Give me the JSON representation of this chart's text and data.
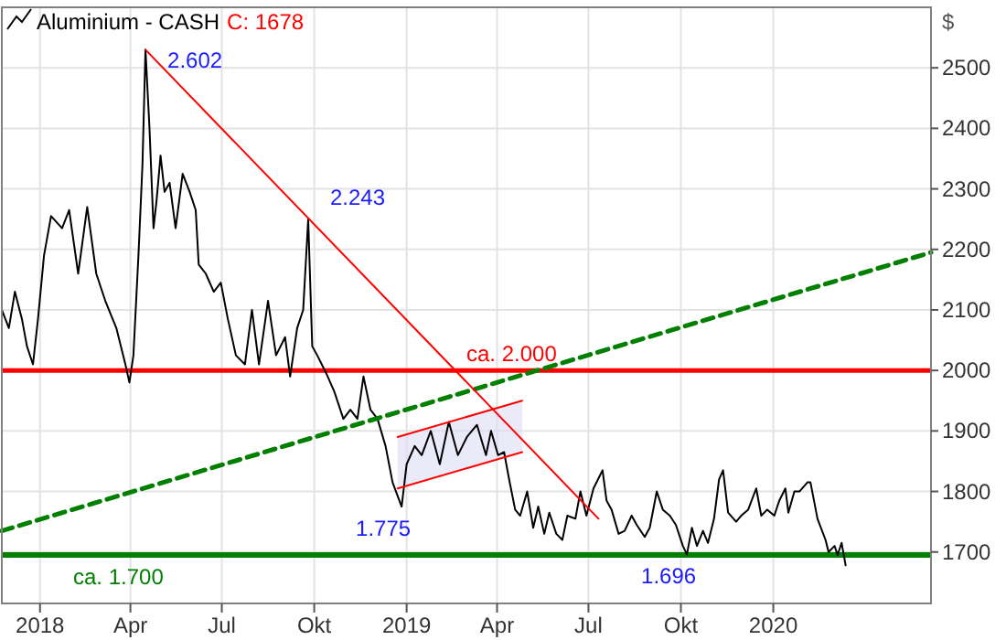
{
  "chart_data": {
    "type": "line",
    "title": "Aluminium - CASH",
    "subtitle": "C: 1678",
    "ylabel": "$",
    "xlim": [
      "2017-11-24",
      "2020-06-06"
    ],
    "ylim": [
      1615,
      2600
    ],
    "xticks": [
      {
        "value": "2018-01-01",
        "label": "2018"
      },
      {
        "value": "2018-04-01",
        "label": "Apr"
      },
      {
        "value": "2018-07-01",
        "label": "Jul"
      },
      {
        "value": "2018-10-01",
        "label": "Okt"
      },
      {
        "value": "2019-01-01",
        "label": "2019"
      },
      {
        "value": "2019-04-01",
        "label": "Apr"
      },
      {
        "value": "2019-07-01",
        "label": "Jul"
      },
      {
        "value": "2019-10-01",
        "label": "Okt"
      },
      {
        "value": "2020-01-01",
        "label": "2020"
      }
    ],
    "yticks": [
      1700,
      1800,
      1900,
      2000,
      2100,
      2200,
      2300,
      2400,
      2500
    ],
    "grid": true,
    "marker": "none",
    "series": [
      {
        "color": "#000000",
        "x": [
          "2017-11-24",
          "2017-12-01",
          "2017-12-07",
          "2017-12-14",
          "2017-12-19",
          "2017-12-25",
          "2017-12-30",
          "2018-01-05",
          "2018-01-12",
          "2018-01-23",
          "2018-01-30",
          "2018-02-08",
          "2018-02-17",
          "2018-02-26",
          "2018-03-07",
          "2018-03-18",
          "2018-03-27",
          "2018-03-31",
          "2018-04-04",
          "2018-04-09",
          "2018-04-13",
          "2018-04-16",
          "2018-04-20",
          "2018-04-24",
          "2018-04-27",
          "2018-05-01",
          "2018-05-05",
          "2018-05-10",
          "2018-05-16",
          "2018-05-23",
          "2018-05-30",
          "2018-06-05",
          "2018-06-08",
          "2018-06-15",
          "2018-06-23",
          "2018-06-30",
          "2018-07-07",
          "2018-07-15",
          "2018-07-24",
          "2018-07-31",
          "2018-08-07",
          "2018-08-16",
          "2018-08-24",
          "2018-09-02",
          "2018-09-07",
          "2018-09-14",
          "2018-09-20",
          "2018-09-25",
          "2018-09-29",
          "2018-10-04",
          "2018-10-13",
          "2018-10-21",
          "2018-10-30",
          "2018-11-06",
          "2018-11-13",
          "2018-11-19",
          "2018-11-26",
          "2018-12-03",
          "2018-12-11",
          "2018-12-18",
          "2018-12-27",
          "2019-01-01",
          "2019-01-09",
          "2019-01-16",
          "2019-01-25",
          "2019-02-03",
          "2019-02-12",
          "2019-02-21",
          "2019-03-02",
          "2019-03-12",
          "2019-03-21",
          "2019-03-26",
          "2019-04-02",
          "2019-04-08",
          "2019-04-13",
          "2019-04-19",
          "2019-04-24",
          "2019-05-01",
          "2019-05-07",
          "2019-05-12",
          "2019-05-18",
          "2019-05-23",
          "2019-05-30",
          "2019-06-05",
          "2019-06-10",
          "2019-06-18",
          "2019-06-23",
          "2019-06-29",
          "2019-07-06",
          "2019-07-15",
          "2019-07-19",
          "2019-07-24",
          "2019-07-31",
          "2019-08-06",
          "2019-08-13",
          "2019-08-18",
          "2019-08-26",
          "2019-08-31",
          "2019-09-07",
          "2019-09-13",
          "2019-09-20",
          "2019-09-26",
          "2019-10-03",
          "2019-10-07",
          "2019-10-12",
          "2019-10-17",
          "2019-10-23",
          "2019-10-28",
          "2019-11-03",
          "2019-11-08",
          "2019-11-12",
          "2019-11-17",
          "2019-11-25",
          "2019-11-30",
          "2019-12-07",
          "2019-12-15",
          "2019-12-20",
          "2019-12-26",
          "2020-01-02",
          "2020-01-07",
          "2020-01-13",
          "2020-01-16",
          "2020-01-22",
          "2020-01-27",
          "2020-02-04",
          "2020-02-07",
          "2020-02-14",
          "2020-02-22",
          "2020-02-25",
          "2020-03-02",
          "2020-03-05",
          "2020-03-09",
          "2020-03-13"
        ],
        "values": [
          2100,
          2070,
          2130,
          2085,
          2040,
          2010,
          2085,
          2190,
          2255,
          2235,
          2265,
          2160,
          2270,
          2160,
          2115,
          2070,
          2010,
          1980,
          2025,
          2190,
          2340,
          2530,
          2400,
          2235,
          2280,
          2355,
          2295,
          2310,
          2235,
          2325,
          2295,
          2265,
          2175,
          2160,
          2130,
          2145,
          2085,
          2025,
          2010,
          2100,
          2010,
          2115,
          2025,
          2055,
          1990,
          2070,
          2100,
          2250,
          2040,
          2025,
          1995,
          1965,
          1920,
          1935,
          1920,
          1990,
          1935,
          1920,
          1875,
          1815,
          1775,
          1845,
          1875,
          1860,
          1900,
          1845,
          1915,
          1860,
          1890,
          1910,
          1860,
          1900,
          1860,
          1865,
          1820,
          1770,
          1760,
          1800,
          1740,
          1775,
          1730,
          1765,
          1730,
          1720,
          1760,
          1755,
          1800,
          1760,
          1805,
          1835,
          1785,
          1770,
          1730,
          1735,
          1760,
          1745,
          1725,
          1740,
          1800,
          1770,
          1760,
          1745,
          1710,
          1696,
          1740,
          1710,
          1735,
          1715,
          1755,
          1820,
          1835,
          1765,
          1750,
          1760,
          1770,
          1805,
          1760,
          1770,
          1760,
          1785,
          1805,
          1765,
          1800,
          1800,
          1815,
          1815,
          1755,
          1720,
          1700,
          1710,
          1695,
          1715,
          1678
        ]
      },
      {
        "color": "#007f00",
        "line_style": "dashed",
        "x": [
          "2017-11-24",
          "2020-06-06"
        ],
        "values": [
          1735,
          2195
        ]
      },
      {
        "color": "#ff0000",
        "x": [
          "2018-04-16",
          "2019-07-11"
        ],
        "values": [
          2530,
          1755
        ]
      },
      {
        "color": "#ff0000",
        "x": [
          "2018-12-23",
          "2019-04-26"
        ],
        "values": [
          1890,
          1950
        ],
        "lower": [
          1805,
          1865
        ],
        "upper": [
          1890,
          1950
        ]
      },
      {
        "color": "#ff0000",
        "x": [
          "2018-12-23",
          "2019-04-26"
        ],
        "values": [
          1805,
          1865
        ]
      }
    ],
    "ref_lines": [
      {
        "axis": "y",
        "value": 2000,
        "label": "ca. 2.000",
        "color": "#ff0000"
      },
      {
        "axis": "y",
        "value": 1695,
        "label": "ca. 1.700",
        "color": "#007f00"
      }
    ],
    "annotations": [
      {
        "text": "2.602",
        "x": "2018-04-16",
        "y": 2530
      },
      {
        "text": "2.243",
        "x": "2018-09-25",
        "y": 2250
      },
      {
        "text": "1.775",
        "x": "2018-12-27",
        "y": 1775
      },
      {
        "text": "1.696",
        "x": "2019-10-07",
        "y": 1696
      }
    ]
  }
}
